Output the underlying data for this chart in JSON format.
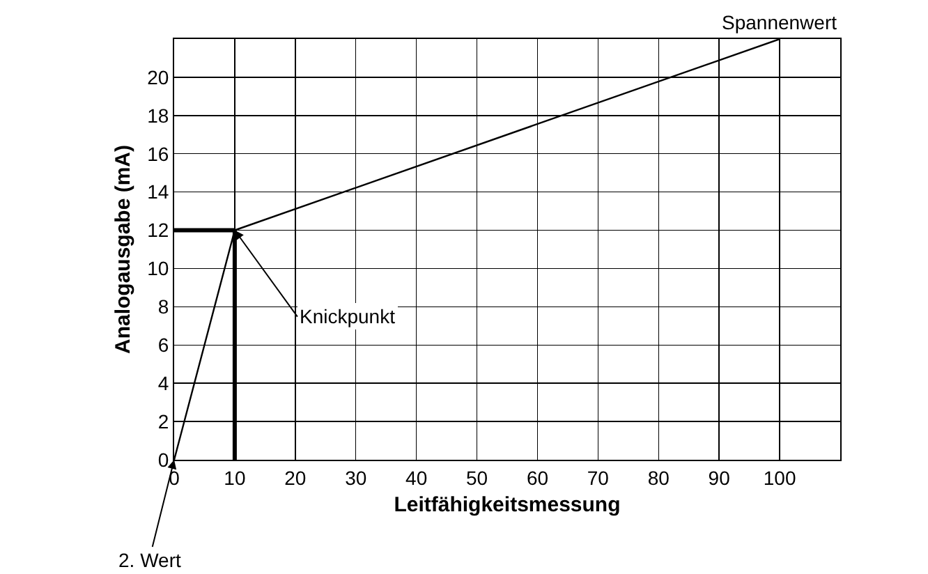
{
  "chart_data": {
    "type": "line",
    "xlabel": "Leitfähigkeitsmessung",
    "ylabel": "Analogausgabe (mA)",
    "xlim": [
      0,
      110
    ],
    "xticks": [
      0,
      10,
      20,
      30,
      40,
      50,
      60,
      70,
      80,
      90,
      100
    ],
    "ylim": [
      0,
      22
    ],
    "yticks": [
      0,
      2,
      4,
      6,
      8,
      10,
      12,
      14,
      16,
      18,
      20
    ],
    "grid": true,
    "marker": "none",
    "line_style": "solid",
    "series": [
      {
        "color": "#000000",
        "x": [
          0,
          10,
          100
        ],
        "values": [
          0,
          12,
          22
        ]
      },
      {
        "color": "#000000",
        "x": [
          0,
          10
        ],
        "values": [
          12,
          12
        ]
      },
      {
        "color": "#000000",
        "x": [
          10,
          10
        ],
        "values": [
          0,
          12
        ]
      }
    ],
    "annotations": [
      {
        "text": "Spannenwert",
        "x": 100,
        "y": 22
      },
      {
        "text": "Knickpunkt",
        "x": 10,
        "y": 12
      },
      {
        "text": "2. Wert",
        "x": 0,
        "y": 0
      }
    ]
  }
}
